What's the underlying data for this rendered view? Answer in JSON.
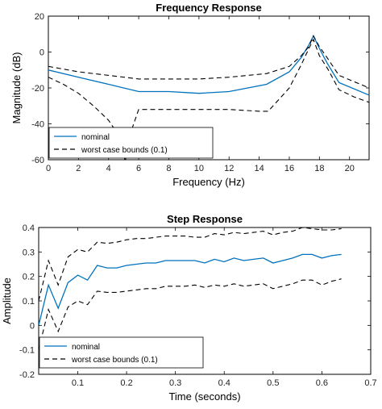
{
  "chart_data": [
    {
      "type": "line",
      "title": "Frequency Response",
      "xlabel": "Frequency  (Hz)",
      "ylabel": "Magnitude (dB)",
      "xlim": [
        0,
        21.3
      ],
      "ylim": [
        -60,
        20
      ],
      "xticks": [
        0,
        2,
        4,
        6,
        8,
        10,
        12,
        14,
        16,
        18,
        20
      ],
      "yticks": [
        -60,
        -40,
        -20,
        0,
        20
      ],
      "xtick_labels": [
        "0",
        "2",
        "4",
        "6",
        "8",
        "10",
        "12",
        "14",
        "16",
        "18",
        "20"
      ],
      "ytick_labels": [
        "-60",
        "-40",
        "-20",
        "0",
        "20"
      ],
      "grid": false,
      "legend_position": "bottom-left",
      "series": [
        {
          "name": "nominal",
          "style": "solid",
          "color": "#0072BD",
          "x": [
            0,
            2,
            4,
            6,
            8,
            10,
            12,
            14.5,
            16,
            16.8,
            17.3,
            17.6,
            18.0,
            18.5,
            19.3,
            21.3
          ],
          "y": [
            -10,
            -14,
            -18,
            -22,
            -22,
            -23,
            -22,
            -18,
            -11,
            -3,
            4,
            9,
            2,
            -6,
            -17,
            -24
          ]
        },
        {
          "name": "worst case bounds (0.1)",
          "style": "dashed",
          "color": "#000000",
          "x": [
            0,
            2,
            4,
            6,
            8,
            10,
            12,
            14.5,
            16,
            16.8,
            17.3,
            17.6,
            18.0,
            18.5,
            19.3,
            21.3
          ],
          "y": [
            -8,
            -11,
            -13,
            -15,
            -15,
            -15,
            -14,
            -12,
            -8,
            -2,
            3,
            9,
            3,
            -3,
            -13,
            -20
          ]
        },
        {
          "name": "",
          "style": "dashed",
          "color": "#000000",
          "x": [
            0,
            1,
            2,
            3,
            4,
            4.8,
            5.1,
            5.5,
            6,
            8,
            10,
            12,
            14,
            14.6,
            16,
            16.8,
            17.3,
            17.6,
            18.0,
            18.6,
            19.3,
            20.3,
            21.3
          ],
          "y": [
            -14,
            -18,
            -23,
            -30,
            -38,
            -48,
            -61,
            -44,
            -32,
            -32,
            -32,
            -32,
            -33,
            -33,
            -20,
            -7,
            2,
            7,
            -2,
            -10,
            -21,
            -25,
            -28
          ]
        }
      ]
    },
    {
      "type": "line",
      "title": "Step Response",
      "xlabel": "Time (seconds)",
      "ylabel": "Amplitude",
      "xlim": [
        0.02,
        0.7
      ],
      "ylim": [
        -0.2,
        0.4
      ],
      "xticks": [
        0.1,
        0.2,
        0.3,
        0.4,
        0.5,
        0.6,
        0.7
      ],
      "yticks": [
        -0.2,
        -0.1,
        0,
        0.1,
        0.2,
        0.3,
        0.4
      ],
      "xtick_labels": [
        "0.1",
        "0.2",
        "0.3",
        "0.4",
        "0.5",
        "0.6",
        "0.7"
      ],
      "ytick_labels": [
        "-0.2",
        "-0.1",
        "0",
        "0.1",
        "0.2",
        "0.3",
        "0.4"
      ],
      "grid": false,
      "legend_position": "bottom-left",
      "series": [
        {
          "name": "nominal",
          "style": "solid",
          "color": "#0072BD",
          "x": [
            0.02,
            0.04,
            0.06,
            0.08,
            0.1,
            0.12,
            0.14,
            0.16,
            0.18,
            0.2,
            0.22,
            0.24,
            0.26,
            0.28,
            0.3,
            0.32,
            0.34,
            0.36,
            0.38,
            0.4,
            0.42,
            0.44,
            0.46,
            0.48,
            0.5,
            0.52,
            0.54,
            0.56,
            0.58,
            0.6,
            0.62,
            0.64
          ],
          "y": [
            0.0,
            0.165,
            0.07,
            0.175,
            0.205,
            0.185,
            0.245,
            0.235,
            0.235,
            0.245,
            0.25,
            0.255,
            0.255,
            0.265,
            0.265,
            0.265,
            0.265,
            0.255,
            0.27,
            0.26,
            0.275,
            0.265,
            0.27,
            0.275,
            0.255,
            0.265,
            0.275,
            0.29,
            0.29,
            0.275,
            0.285,
            0.29
          ]
        },
        {
          "name": "worst case bounds (0.1)",
          "style": "dashed",
          "color": "#000000",
          "x": [
            0.02,
            0.04,
            0.06,
            0.08,
            0.1,
            0.12,
            0.14,
            0.16,
            0.18,
            0.2,
            0.22,
            0.24,
            0.26,
            0.28,
            0.3,
            0.32,
            0.34,
            0.36,
            0.38,
            0.4,
            0.42,
            0.44,
            0.46,
            0.48,
            0.5,
            0.52,
            0.54,
            0.56,
            0.58,
            0.6,
            0.62,
            0.64
          ],
          "y": [
            0.1,
            0.265,
            0.165,
            0.28,
            0.31,
            0.3,
            0.34,
            0.335,
            0.34,
            0.35,
            0.355,
            0.355,
            0.36,
            0.365,
            0.365,
            0.365,
            0.36,
            0.36,
            0.375,
            0.37,
            0.38,
            0.375,
            0.38,
            0.385,
            0.37,
            0.38,
            0.385,
            0.4,
            0.395,
            0.39,
            0.39,
            0.395
          ]
        },
        {
          "name": "",
          "style": "dashed",
          "color": "#000000",
          "x": [
            0.02,
            0.04,
            0.06,
            0.08,
            0.1,
            0.12,
            0.14,
            0.16,
            0.18,
            0.2,
            0.22,
            0.24,
            0.26,
            0.28,
            0.3,
            0.32,
            0.34,
            0.36,
            0.38,
            0.4,
            0.42,
            0.44,
            0.46,
            0.48,
            0.5,
            0.52,
            0.54,
            0.56,
            0.58,
            0.6,
            0.62,
            0.64
          ],
          "y": [
            -0.1,
            0.065,
            -0.025,
            0.075,
            0.1,
            0.085,
            0.14,
            0.135,
            0.135,
            0.14,
            0.145,
            0.15,
            0.15,
            0.16,
            0.16,
            0.16,
            0.165,
            0.155,
            0.165,
            0.16,
            0.17,
            0.16,
            0.165,
            0.17,
            0.15,
            0.16,
            0.17,
            0.185,
            0.185,
            0.165,
            0.18,
            0.19
          ]
        }
      ]
    }
  ]
}
